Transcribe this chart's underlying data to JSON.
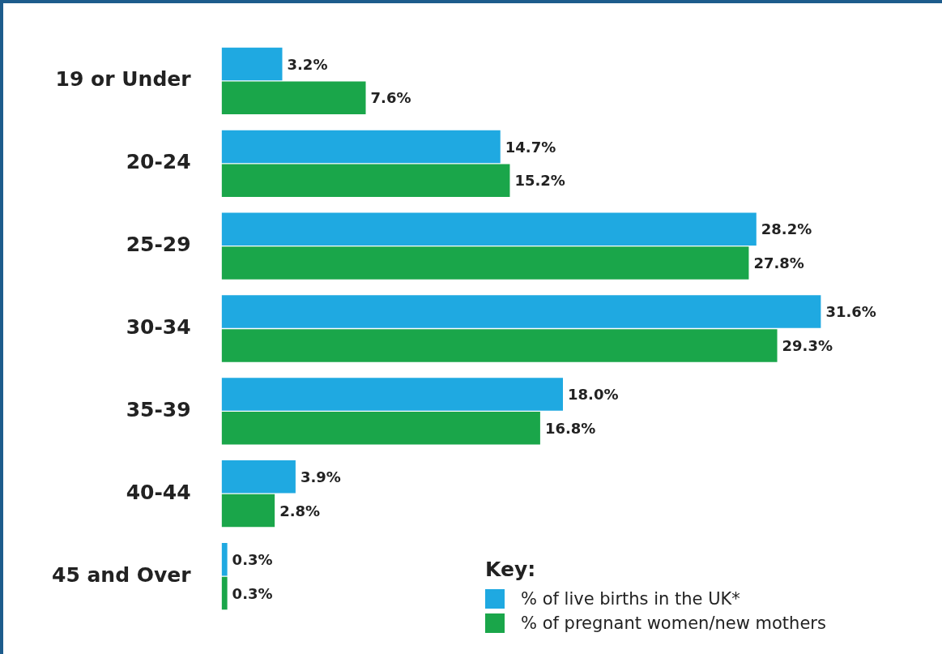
{
  "chart_data": {
    "type": "bar",
    "orientation": "horizontal",
    "categories": [
      "19 or Under",
      "20-24",
      "25-29",
      "30-34",
      "35-39",
      "40-44",
      "45 and Over"
    ],
    "series": [
      {
        "name": "% of live births in the UK*",
        "color": "#1fa9e1",
        "values": [
          3.2,
          14.7,
          28.2,
          31.6,
          18.0,
          3.9,
          0.3
        ],
        "value_labels": [
          "3.2%",
          "14.7%",
          "28.2%",
          "31.6%",
          "18.0%",
          "3.9%",
          "0.3%"
        ]
      },
      {
        "name": "% of pregnant women/new mothers",
        "color": "#1aa64a",
        "values": [
          7.6,
          15.2,
          27.8,
          29.3,
          16.8,
          2.8,
          0.3
        ],
        "value_labels": [
          "7.6%",
          "15.2%",
          "27.8%",
          "29.3%",
          "16.8%",
          "2.8%",
          "0.3%"
        ]
      }
    ],
    "legend": "bottom right",
    "legend_title": "Key:"
  }
}
